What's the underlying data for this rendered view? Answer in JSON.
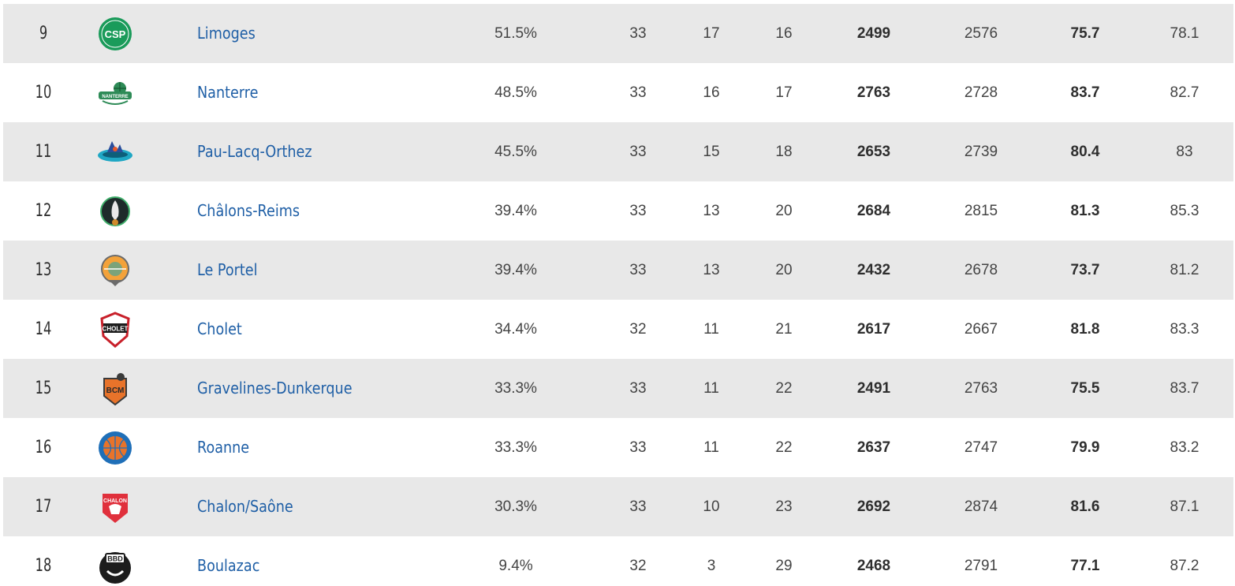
{
  "standings": {
    "rows": [
      {
        "rank": "9",
        "team": "Limoges",
        "pct": "51.5%",
        "gp": "33",
        "w": "17",
        "l": "16",
        "pf": "2499",
        "pa": "2576",
        "avg_for": "75.7",
        "avg_against": "78.1",
        "logo_icon": "limoges-csp-logo-icon",
        "logo_text": "CSP"
      },
      {
        "rank": "10",
        "team": "Nanterre",
        "pct": "48.5%",
        "gp": "33",
        "w": "16",
        "l": "17",
        "pf": "2763",
        "pa": "2728",
        "avg_for": "83.7",
        "avg_against": "82.7",
        "logo_icon": "nanterre-logo-icon",
        "logo_text": "NANTERRE"
      },
      {
        "rank": "11",
        "team": "Pau-Lacq-Orthez",
        "pct": "45.5%",
        "gp": "33",
        "w": "15",
        "l": "18",
        "pf": "2653",
        "pa": "2739",
        "avg_for": "80.4",
        "avg_against": "83",
        "logo_icon": "pau-lacq-orthez-logo-icon",
        "logo_text": ""
      },
      {
        "rank": "12",
        "team": "Châlons-Reims",
        "pct": "39.4%",
        "gp": "33",
        "w": "13",
        "l": "20",
        "pf": "2684",
        "pa": "2815",
        "avg_for": "81.3",
        "avg_against": "85.3",
        "logo_icon": "chalons-reims-logo-icon",
        "logo_text": ""
      },
      {
        "rank": "13",
        "team": "Le Portel",
        "pct": "39.4%",
        "gp": "33",
        "w": "13",
        "l": "20",
        "pf": "2432",
        "pa": "2678",
        "avg_for": "73.7",
        "avg_against": "81.2",
        "logo_icon": "le-portel-logo-icon",
        "logo_text": ""
      },
      {
        "rank": "14",
        "team": "Cholet",
        "pct": "34.4%",
        "gp": "32",
        "w": "11",
        "l": "21",
        "pf": "2617",
        "pa": "2667",
        "avg_for": "81.8",
        "avg_against": "83.3",
        "logo_icon": "cholet-logo-icon",
        "logo_text": "CHOLET"
      },
      {
        "rank": "15",
        "team": "Gravelines-Dunkerque",
        "pct": "33.3%",
        "gp": "33",
        "w": "11",
        "l": "22",
        "pf": "2491",
        "pa": "2763",
        "avg_for": "75.5",
        "avg_against": "83.7",
        "logo_icon": "bcm-logo-icon",
        "logo_text": "BCM"
      },
      {
        "rank": "16",
        "team": "Roanne",
        "pct": "33.3%",
        "gp": "33",
        "w": "11",
        "l": "22",
        "pf": "2637",
        "pa": "2747",
        "avg_for": "79.9",
        "avg_against": "83.2",
        "logo_icon": "roanne-logo-icon",
        "logo_text": ""
      },
      {
        "rank": "17",
        "team": "Chalon/Saône",
        "pct": "30.3%",
        "gp": "33",
        "w": "10",
        "l": "23",
        "pf": "2692",
        "pa": "2874",
        "avg_for": "81.6",
        "avg_against": "87.1",
        "logo_icon": "chalon-logo-icon",
        "logo_text": "CHALON"
      },
      {
        "rank": "18",
        "team": "Boulazac",
        "pct": "9.4%",
        "gp": "32",
        "w": "3",
        "l": "29",
        "pf": "2468",
        "pa": "2791",
        "avg_for": "77.1",
        "avg_against": "87.2",
        "logo_icon": "bbd-logo-icon",
        "logo_text": "BBD"
      }
    ]
  },
  "colors": {
    "row_alt_bg": "#e8e8e8",
    "team_link": "#1f5fa6",
    "text": "#444444"
  }
}
